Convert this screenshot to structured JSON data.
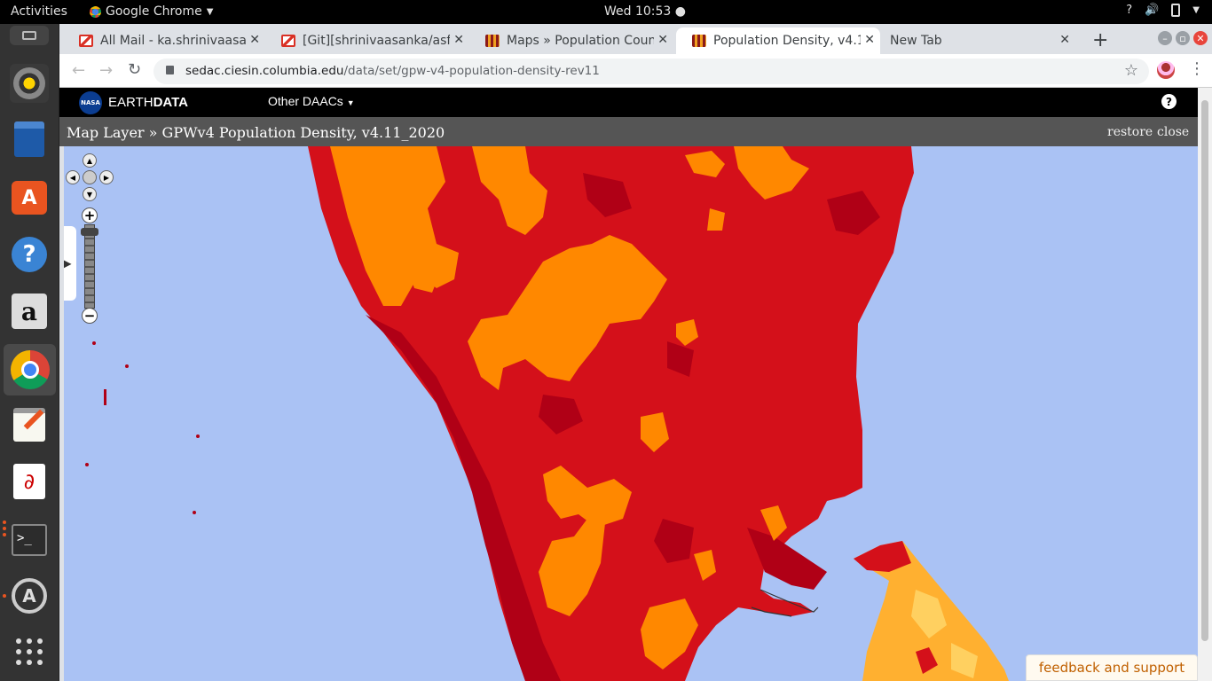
{
  "topbar": {
    "activities": "Activities",
    "app_name": "Google Chrome",
    "clock": "Wed 10:53"
  },
  "dock": [
    "music-player",
    "document-viewer",
    "software-center",
    "help",
    "amazon",
    "chrome",
    "text-editor",
    "pdf-viewer",
    "terminal",
    "software-updater",
    "show-apps"
  ],
  "tabs": [
    {
      "title": "All Mail - ka.shrinivaasan",
      "favicon": "gmail-icon",
      "active": false
    },
    {
      "title": "[Git][shrinivaasanka/asf",
      "favicon": "gmail-icon",
      "active": false
    },
    {
      "title": "Maps » Population Coun",
      "favicon": "sedac-icon",
      "active": false
    },
    {
      "title": "Population Density, v4.1",
      "favicon": "sedac-icon",
      "active": true
    },
    {
      "title": "New Tab",
      "favicon": "",
      "active": false
    }
  ],
  "address": {
    "host": "sedac.ciesin.columbia.edu",
    "path": "/data/set/gpw-v4-population-density-rev11"
  },
  "earthdata": {
    "brand_light": "EARTH",
    "brand_bold": "DATA",
    "other_daacs": "Other DAACs",
    "help": "?"
  },
  "maplayer": {
    "title": "Map Layer » GPWv4 Population Density, v4.11_2020",
    "restore": "restore",
    "close": "close"
  },
  "map_controls": {
    "zoom_in": "+",
    "zoom_out": "−"
  },
  "feedback": "feedback and support",
  "colors": {
    "ocean": "#aac2f4",
    "density_high": "#d4101a",
    "density_mid": "#ff8800",
    "density_peak": "#b00016",
    "density_low": "#ffc040"
  }
}
